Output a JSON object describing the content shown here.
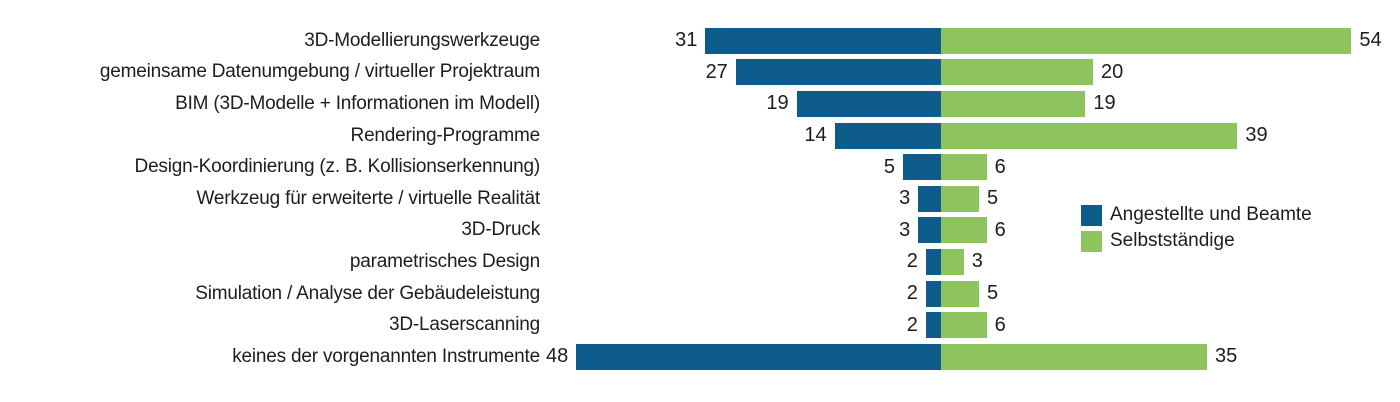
{
  "chart_data": {
    "type": "bar",
    "variant": "horizontal-diverging-from-center",
    "title": "",
    "xlabel": "",
    "ylabel": "",
    "grid": false,
    "axes_shown": false,
    "value_labels": "at outer bar ends",
    "categories": [
      "3D-Modellierungswerkzeuge",
      "gemeinsame Datenumgebung / virtueller Projektraum",
      "BIM (3D-Modelle + Informationen im Modell)",
      "Rendering-Programme",
      "Design-Koordinierung (z. B. Kollisionserkennung)",
      "Werkzeug für erweiterte / virtuelle Realität",
      "3D-Druck",
      "parametrisches Design",
      "Simulation / Analyse der Gebäudeleistung",
      "3D-Laserscanning",
      "keines der vorgenannten Instrumente"
    ],
    "series": [
      {
        "name": "Angestellte und Beamte",
        "side": "left",
        "color": "#0e5c8c",
        "values": [
          31,
          27,
          19,
          14,
          5,
          3,
          3,
          2,
          2,
          2,
          48
        ]
      },
      {
        "name": "Selbstständige",
        "side": "right",
        "color": "#8dc45e",
        "values": [
          54,
          20,
          19,
          39,
          6,
          5,
          6,
          3,
          5,
          6,
          35
        ]
      }
    ],
    "legend_position": "right-middle",
    "text_color": "#1d1d1b",
    "background_color": "#ffffff"
  },
  "legend": {
    "items": [
      {
        "label": "Angestellte und Beamte",
        "color": "#0e5c8c"
      },
      {
        "label": "Selbstständige",
        "color": "#8dc45e"
      }
    ]
  }
}
